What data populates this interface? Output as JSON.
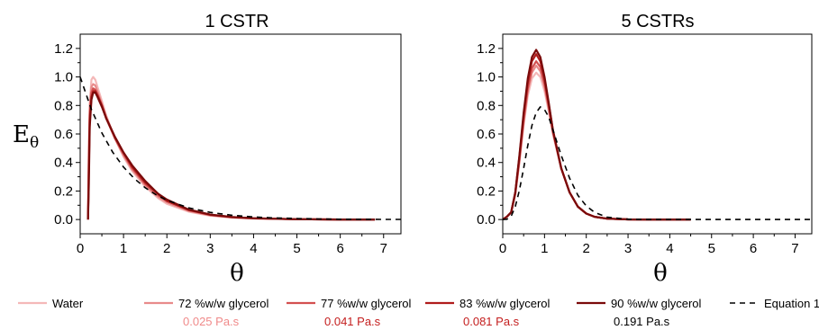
{
  "chart_data": [
    {
      "type": "line",
      "title": "1 CSTR",
      "xlabel": "θ",
      "ylabel": "Eθ",
      "xlim": [
        0,
        7.4
      ],
      "ylim": [
        -0.1,
        1.3
      ],
      "x_ticks": [
        0,
        1,
        2,
        3,
        4,
        5,
        6,
        7
      ],
      "y_ticks": [
        0.0,
        0.2,
        0.4,
        0.6,
        0.8,
        1.0,
        1.2
      ],
      "series": [
        {
          "name": "Water",
          "color": "#f4b8b8",
          "x": [
            0.18,
            0.2,
            0.22,
            0.26,
            0.3,
            0.35,
            0.4,
            0.5,
            0.6,
            0.8,
            1.0,
            1.2,
            1.5,
            1.8,
            2.0,
            2.5,
            3.0,
            3.5,
            4.0,
            5.0,
            6.0,
            6.8
          ],
          "y": [
            0.0,
            0.5,
            0.82,
            0.98,
            1.0,
            0.98,
            0.93,
            0.83,
            0.73,
            0.57,
            0.44,
            0.34,
            0.23,
            0.15,
            0.11,
            0.055,
            0.027,
            0.013,
            0.007,
            0.002,
            0.0,
            0.0
          ]
        },
        {
          "name": "72 %w/w glycerol",
          "color": "#e88b8b",
          "x": [
            0.18,
            0.2,
            0.22,
            0.26,
            0.3,
            0.35,
            0.4,
            0.5,
            0.6,
            0.8,
            1.0,
            1.2,
            1.5,
            1.8,
            2.0,
            2.5,
            3.0,
            3.5,
            4.0,
            5.0,
            6.0,
            6.8
          ],
          "y": [
            0.0,
            0.45,
            0.78,
            0.93,
            0.95,
            0.94,
            0.9,
            0.81,
            0.72,
            0.57,
            0.45,
            0.35,
            0.24,
            0.16,
            0.12,
            0.06,
            0.03,
            0.015,
            0.008,
            0.002,
            0.0,
            0.0
          ]
        },
        {
          "name": "77 %w/w glycerol",
          "color": "#d35050",
          "x": [
            0.18,
            0.2,
            0.22,
            0.26,
            0.3,
            0.35,
            0.4,
            0.5,
            0.6,
            0.8,
            1.0,
            1.2,
            1.5,
            1.8,
            2.0,
            2.5,
            3.0,
            3.5,
            4.0,
            5.0,
            6.0,
            6.8
          ],
          "y": [
            0.0,
            0.4,
            0.74,
            0.89,
            0.92,
            0.91,
            0.88,
            0.8,
            0.71,
            0.57,
            0.46,
            0.36,
            0.25,
            0.17,
            0.13,
            0.065,
            0.032,
            0.016,
            0.008,
            0.002,
            0.0,
            0.0
          ]
        },
        {
          "name": "83 %w/w glycerol",
          "color": "#b01c1c",
          "x": [
            0.18,
            0.2,
            0.22,
            0.26,
            0.3,
            0.35,
            0.4,
            0.5,
            0.6,
            0.8,
            1.0,
            1.2,
            1.5,
            1.8,
            2.0,
            2.5,
            3.0,
            3.5,
            4.0,
            5.0,
            6.0,
            6.8
          ],
          "y": [
            0.0,
            0.35,
            0.7,
            0.86,
            0.9,
            0.9,
            0.87,
            0.8,
            0.71,
            0.58,
            0.47,
            0.37,
            0.26,
            0.18,
            0.13,
            0.068,
            0.034,
            0.017,
            0.009,
            0.002,
            0.0,
            0.0
          ]
        },
        {
          "name": "90 %w/w glycerol",
          "color": "#7a0a0a",
          "x": [
            0.18,
            0.2,
            0.22,
            0.26,
            0.3,
            0.35,
            0.4,
            0.5,
            0.6,
            0.8,
            1.0,
            1.2,
            1.5,
            1.8,
            2.0,
            2.5,
            3.0,
            3.5,
            4.0,
            5.0,
            6.0,
            6.8
          ],
          "y": [
            0.0,
            0.25,
            0.65,
            0.84,
            0.89,
            0.89,
            0.86,
            0.79,
            0.71,
            0.58,
            0.47,
            0.38,
            0.27,
            0.18,
            0.14,
            0.07,
            0.035,
            0.018,
            0.009,
            0.002,
            0.0,
            0.0
          ]
        },
        {
          "name": "Equation 1",
          "color": "#000000",
          "dashed": true,
          "x": [
            0,
            0.25,
            0.5,
            0.75,
            1.0,
            1.25,
            1.5,
            1.75,
            2.0,
            2.5,
            3.0,
            3.5,
            4.0,
            4.5,
            5.0,
            5.5,
            6.0,
            6.5,
            7.0,
            7.4
          ],
          "y": [
            1.0,
            0.779,
            0.607,
            0.472,
            0.368,
            0.287,
            0.223,
            0.174,
            0.135,
            0.082,
            0.05,
            0.03,
            0.018,
            0.011,
            0.007,
            0.004,
            0.002,
            0.0015,
            0.0009,
            0.0006
          ]
        }
      ]
    },
    {
      "type": "line",
      "title": "5 CSTRs",
      "xlabel": "θ",
      "ylabel": "",
      "xlim": [
        0,
        7.4
      ],
      "ylim": [
        -0.1,
        1.3
      ],
      "x_ticks": [
        0,
        1,
        2,
        3,
        4,
        5,
        6,
        7
      ],
      "y_ticks": [
        0.0,
        0.2,
        0.4,
        0.6,
        0.8,
        1.0,
        1.2
      ],
      "series": [
        {
          "name": "Water",
          "color": "#f4b8b8",
          "x": [
            0,
            0.1,
            0.2,
            0.3,
            0.4,
            0.5,
            0.6,
            0.7,
            0.8,
            0.9,
            1.0,
            1.1,
            1.2,
            1.4,
            1.6,
            1.8,
            2.0,
            2.2,
            2.5,
            3.0,
            3.5,
            4.0,
            4.5
          ],
          "y": [
            0.0,
            0.02,
            0.05,
            0.18,
            0.4,
            0.66,
            0.87,
            0.99,
            1.03,
            1.0,
            0.9,
            0.76,
            0.6,
            0.36,
            0.19,
            0.09,
            0.042,
            0.019,
            0.006,
            0.001,
            0.0,
            0.0,
            0.0
          ]
        },
        {
          "name": "72 %w/w glycerol",
          "color": "#e88b8b",
          "x": [
            0,
            0.1,
            0.2,
            0.3,
            0.4,
            0.5,
            0.6,
            0.7,
            0.8,
            0.9,
            1.0,
            1.1,
            1.2,
            1.4,
            1.6,
            1.8,
            2.0,
            2.2,
            2.5,
            3.0,
            3.5,
            4.0,
            4.5
          ],
          "y": [
            0.0,
            0.02,
            0.05,
            0.18,
            0.41,
            0.68,
            0.9,
            1.03,
            1.08,
            1.04,
            0.93,
            0.78,
            0.61,
            0.36,
            0.19,
            0.09,
            0.042,
            0.019,
            0.006,
            0.001,
            0.0,
            0.0,
            0.0
          ]
        },
        {
          "name": "77 %w/w glycerol",
          "color": "#d35050",
          "x": [
            0,
            0.1,
            0.2,
            0.3,
            0.4,
            0.5,
            0.6,
            0.7,
            0.8,
            0.9,
            1.0,
            1.1,
            1.2,
            1.4,
            1.6,
            1.8,
            2.0,
            2.2,
            2.5,
            3.0,
            3.5,
            4.0,
            4.5
          ],
          "y": [
            0.0,
            0.02,
            0.05,
            0.18,
            0.42,
            0.7,
            0.92,
            1.06,
            1.11,
            1.07,
            0.95,
            0.79,
            0.62,
            0.36,
            0.19,
            0.09,
            0.042,
            0.019,
            0.006,
            0.001,
            0.0,
            0.0,
            0.0
          ]
        },
        {
          "name": "83 %w/w glycerol",
          "color": "#b01c1c",
          "x": [
            0,
            0.1,
            0.2,
            0.3,
            0.4,
            0.5,
            0.6,
            0.7,
            0.8,
            0.9,
            1.0,
            1.1,
            1.2,
            1.4,
            1.6,
            1.8,
            2.0,
            2.2,
            2.5,
            3.0,
            3.5,
            4.0,
            4.5
          ],
          "y": [
            0.0,
            0.02,
            0.05,
            0.19,
            0.44,
            0.73,
            0.96,
            1.11,
            1.16,
            1.11,
            0.98,
            0.81,
            0.63,
            0.36,
            0.19,
            0.09,
            0.042,
            0.019,
            0.006,
            0.001,
            0.0,
            0.0,
            0.0
          ]
        },
        {
          "name": "90 %w/w glycerol",
          "color": "#7a0a0a",
          "x": [
            0,
            0.1,
            0.2,
            0.3,
            0.4,
            0.5,
            0.6,
            0.7,
            0.8,
            0.9,
            1.0,
            1.1,
            1.2,
            1.4,
            1.6,
            1.8,
            2.0,
            2.2,
            2.5,
            3.0,
            3.5,
            4.0,
            4.5
          ],
          "y": [
            0.0,
            0.02,
            0.05,
            0.19,
            0.45,
            0.75,
            0.99,
            1.14,
            1.19,
            1.14,
            1.0,
            0.82,
            0.63,
            0.36,
            0.19,
            0.09,
            0.042,
            0.019,
            0.006,
            0.001,
            0.0,
            0.0,
            0.0
          ]
        },
        {
          "name": "Equation 1",
          "color": "#000000",
          "dashed": true,
          "x": [
            0,
            0.1,
            0.2,
            0.3,
            0.4,
            0.5,
            0.6,
            0.7,
            0.8,
            0.9,
            1.0,
            1.1,
            1.2,
            1.4,
            1.6,
            1.8,
            2.0,
            2.2,
            2.5,
            3.0,
            3.5,
            4.0,
            5.0,
            6.0,
            7.0,
            7.4
          ],
          "y": [
            0.0,
            0.002,
            0.023,
            0.09,
            0.206,
            0.36,
            0.52,
            0.66,
            0.75,
            0.79,
            0.77,
            0.72,
            0.63,
            0.45,
            0.29,
            0.17,
            0.095,
            0.05,
            0.016,
            0.0024,
            0.0003,
            0.0,
            0.0,
            0.0,
            0.0,
            0.0
          ]
        }
      ]
    }
  ],
  "legend": {
    "items": [
      {
        "label": "Water",
        "color": "#f4b8b8",
        "dashed": false
      },
      {
        "label": "72 %w/w glycerol",
        "color": "#e88b8b",
        "dashed": false
      },
      {
        "label": "77 %w/w glycerol",
        "color": "#d35050",
        "dashed": false
      },
      {
        "label": "83 %w/w glycerol",
        "color": "#b01c1c",
        "dashed": false
      },
      {
        "label": "90 %w/w glycerol",
        "color": "#7a0a0a",
        "dashed": false
      },
      {
        "label": "Equation 1",
        "color": "#000000",
        "dashed": true
      }
    ],
    "viscosities": [
      {
        "label": "0.025 Pa.s",
        "color": "#f08a8a"
      },
      {
        "label": "0.041 Pa.s",
        "color": "#c41e1e"
      },
      {
        "label": "0.081 Pa.s",
        "color": "#c41e1e"
      },
      {
        "label": "0.191 Pa.s",
        "color": "#000000"
      }
    ]
  }
}
